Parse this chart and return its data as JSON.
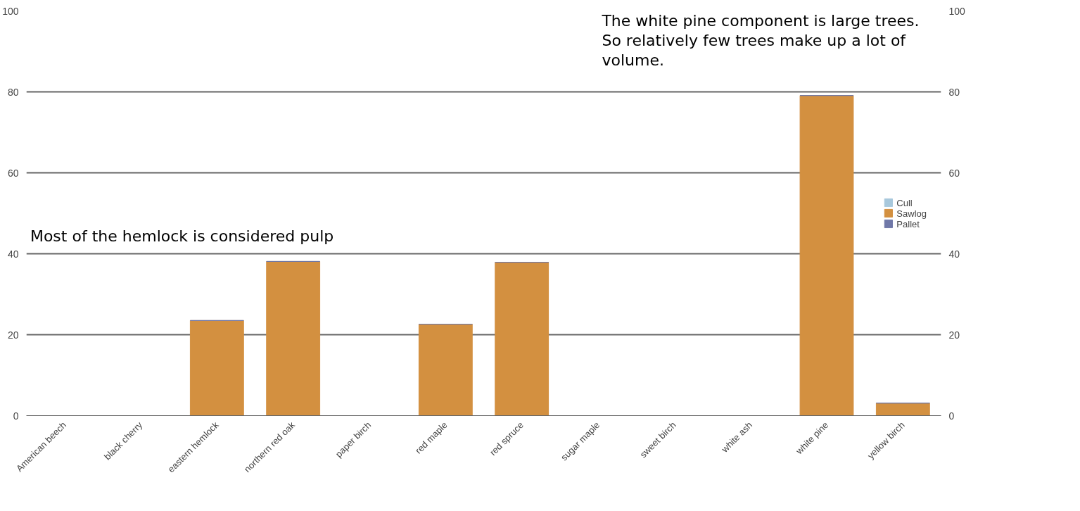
{
  "chart_data": {
    "type": "bar",
    "stacked": true,
    "categories": [
      "American beech",
      "black cherry",
      "eastern hemlock",
      "northern red oak",
      "paper birch",
      "red maple",
      "red spruce",
      "sugar maple",
      "sweet birch",
      "white ash",
      "white pine",
      "yellow birch"
    ],
    "series": [
      {
        "name": "Cull",
        "color": "#a8c8dc",
        "values": [
          0,
          0,
          0,
          0,
          0,
          0,
          0,
          0,
          0,
          0,
          0,
          0
        ]
      },
      {
        "name": "Sawlog",
        "color": "#d39040",
        "values": [
          0,
          0,
          23.5,
          38.1,
          0,
          22.6,
          37.9,
          0,
          0,
          0,
          79.1,
          3.1
        ]
      },
      {
        "name": "Pallet",
        "color": "#7078a8",
        "values": [
          0,
          0,
          0,
          0,
          0,
          0,
          0,
          0,
          0,
          0,
          0,
          0
        ]
      }
    ],
    "ylim": [
      0,
      100
    ],
    "yticks": [
      0,
      20,
      40,
      60,
      80,
      100
    ],
    "y2lim": [
      0,
      100
    ],
    "y2ticks": [
      0,
      20,
      40,
      60,
      80,
      100
    ],
    "grid": "y",
    "legend": "right",
    "annotations": [
      "Most of the hemlock is considered pulp",
      "The white pine component is large trees.\nSo relatively few trees make up a lot of\nvolume."
    ]
  }
}
